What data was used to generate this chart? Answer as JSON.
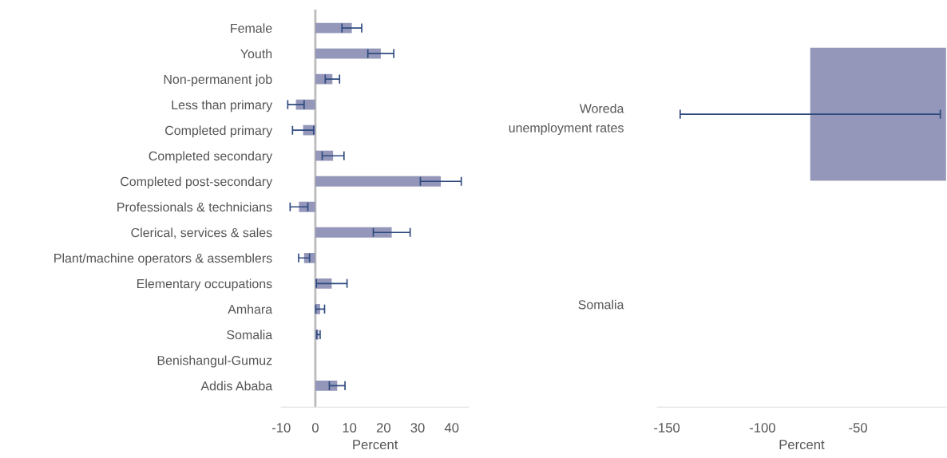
{
  "chart_data": [
    {
      "type": "bar",
      "orientation": "horizontal",
      "categories": [
        "Female",
        "Youth",
        "Non-permanent job",
        "Less than primary",
        "Completed primary",
        "Completed secondary",
        "Completed post-secondary",
        "Professionals & technicians",
        "Clerical, services & sales",
        "Plant/machine operators & assemblers",
        "Elementary occupations",
        "Amhara",
        "Somalia",
        "Benishangul-Gumuz",
        "Addis Ababa"
      ],
      "values": [
        10.7,
        19.2,
        5.0,
        -5.7,
        -3.6,
        5.2,
        36.8,
        -4.8,
        22.4,
        -3.3,
        4.8,
        1.4,
        0.9,
        null,
        6.4
      ],
      "errors": [
        2.9,
        3.8,
        2.1,
        2.4,
        3.1,
        3.2,
        6.0,
        2.6,
        5.4,
        1.6,
        4.5,
        1.3,
        0.5,
        null,
        2.3
      ],
      "color": "#9497b9",
      "xlim": [
        -10,
        45
      ],
      "xticks": [
        -10,
        0,
        10,
        20,
        30,
        40
      ],
      "xlabel": "Percent",
      "ref_lines": [
        {
          "axis": "x",
          "value": 0,
          "color": "#bbbbbb"
        }
      ],
      "grid": false
    },
    {
      "type": "bar",
      "orientation": "horizontal",
      "categories": [
        "Woreda\nunemployment rates",
        "Somalia"
      ],
      "values": [
        -75,
        null
      ],
      "errors": [
        68,
        null
      ],
      "color": "#9497b9",
      "xlim": [
        -155,
        -4
      ],
      "xticks": [
        -150,
        -100,
        -50
      ],
      "xlabel": "Percent",
      "grid": false
    }
  ]
}
